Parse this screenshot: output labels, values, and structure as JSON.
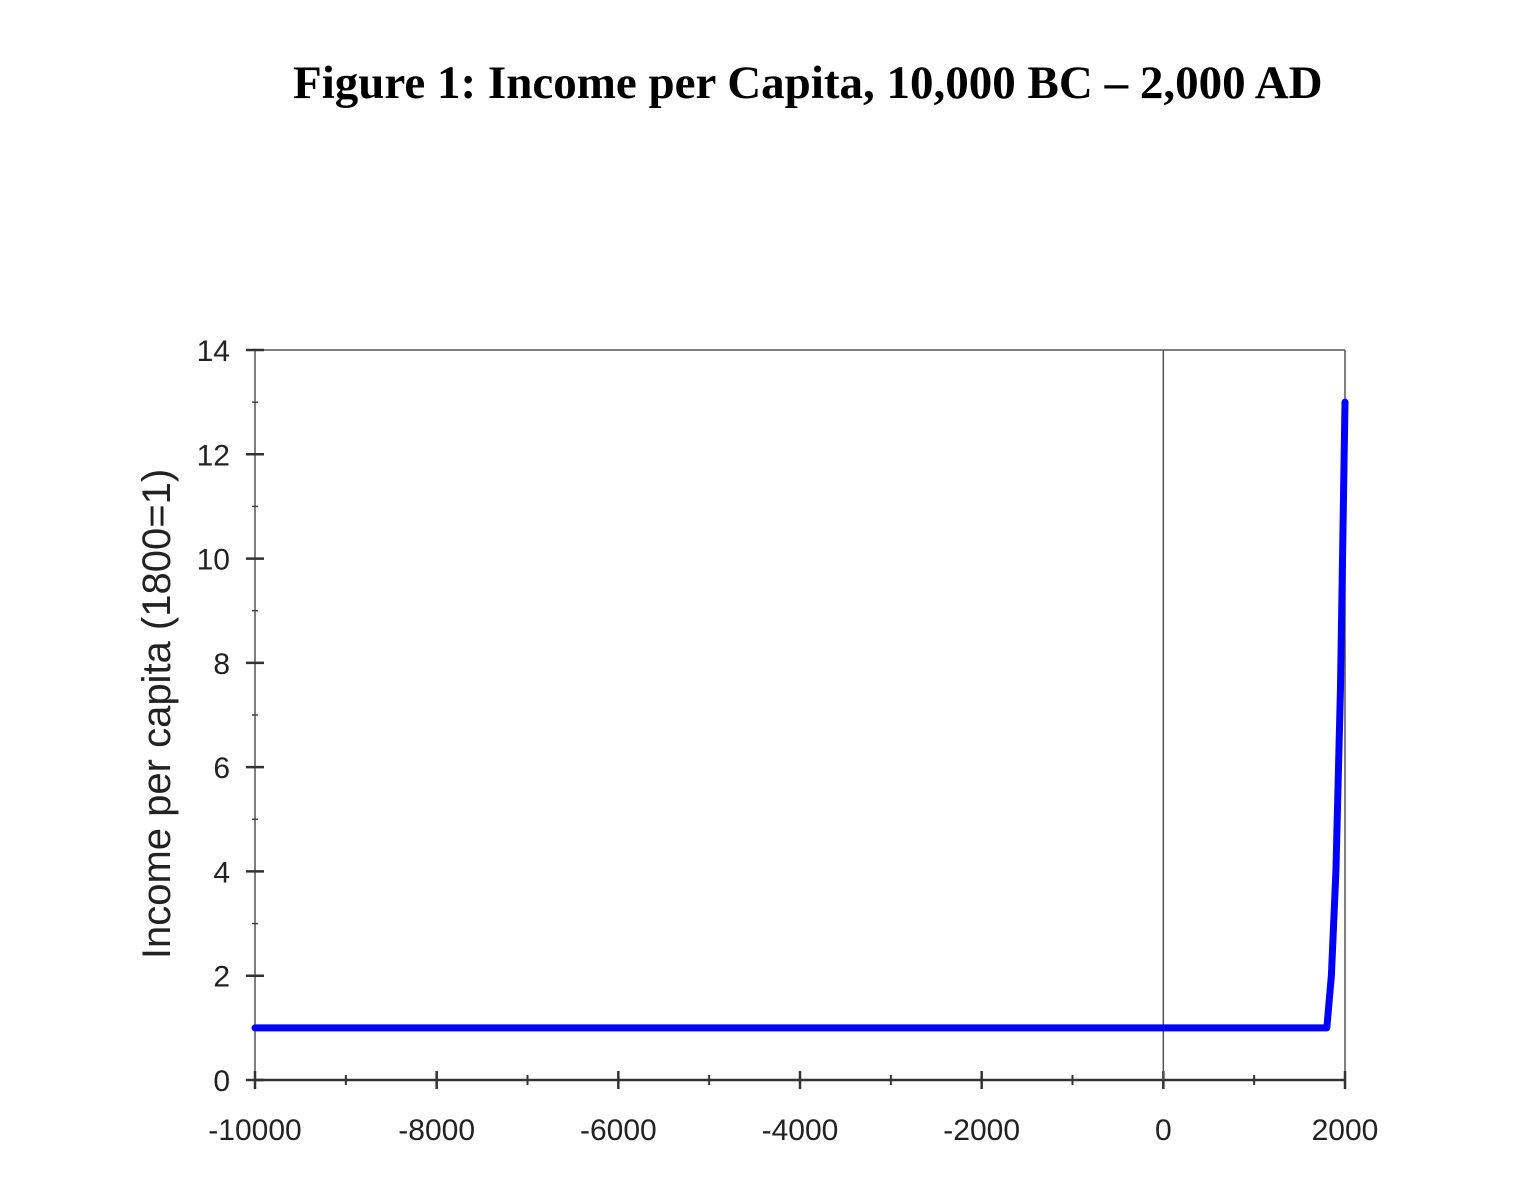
{
  "chart_data": {
    "type": "line",
    "title": "Figure 1: Income per Capita, 10,000 BC – 2,000 AD",
    "xlabel": "",
    "ylabel": "Income per capita (1800=1)",
    "xlim": [
      -10000,
      2000
    ],
    "ylim": [
      0,
      14
    ],
    "x_ticks": [
      -10000,
      -8000,
      -6000,
      -4000,
      -2000,
      0,
      2000
    ],
    "x_tick_labels": [
      "-10000",
      "-8000",
      "-6000",
      "-4000",
      "-2000",
      "0",
      "2000"
    ],
    "y_ticks": [
      0,
      2,
      4,
      6,
      8,
      10,
      12,
      14
    ],
    "y_tick_labels": [
      "0",
      "2",
      "4",
      "6",
      "8",
      "10",
      "12",
      "14"
    ],
    "reference_line_x": 0,
    "grid": false,
    "legend": "none",
    "series": [
      {
        "color": "#0000ff",
        "x": [
          -10000,
          1800,
          1850,
          1900,
          1950,
          2000
        ],
        "y": [
          1,
          1,
          2,
          4,
          7.5,
          13
        ]
      }
    ]
  }
}
